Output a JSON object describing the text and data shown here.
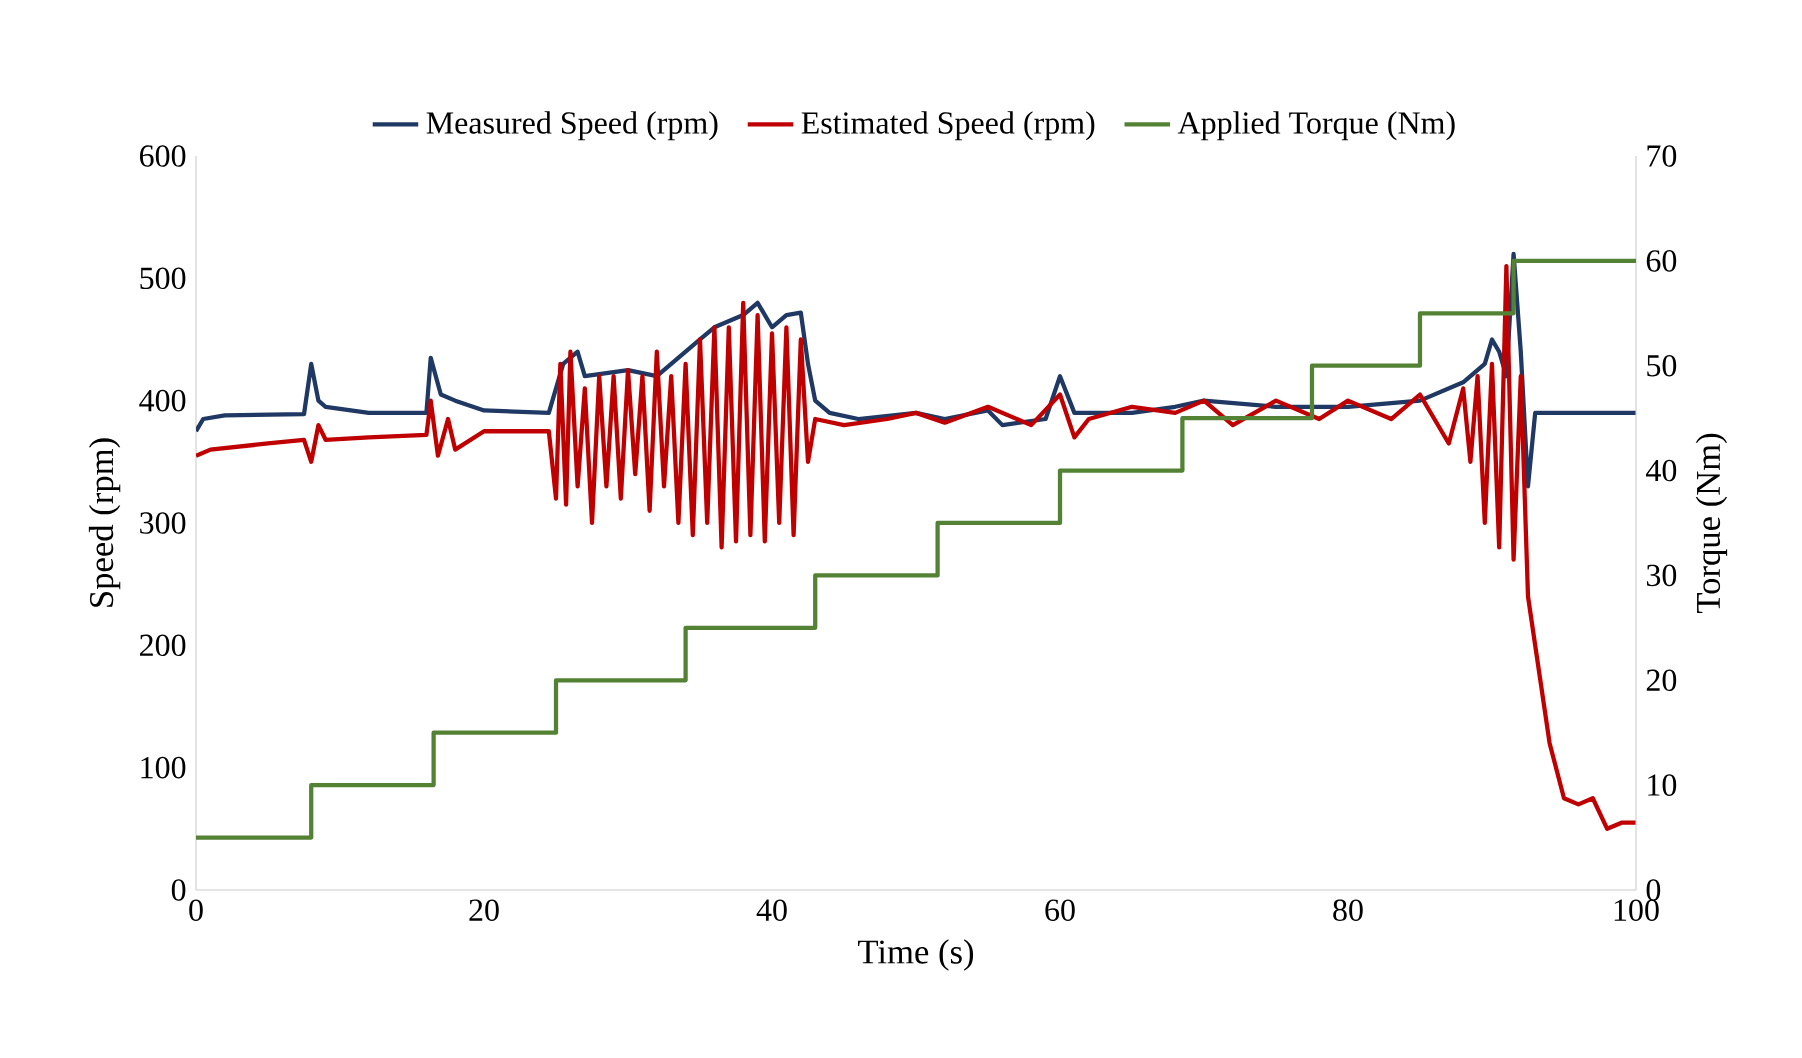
{
  "chart_data": {
    "type": "line",
    "xlabel": "Time (s)",
    "ylabel": "Speed (rpm)",
    "y2label": "Torque (Nm)",
    "xlim": [
      0,
      100
    ],
    "xticks": [
      0,
      20,
      40,
      60,
      80,
      100
    ],
    "ylim": [
      0,
      600
    ],
    "yticks": [
      0,
      100,
      200,
      300,
      400,
      500,
      600
    ],
    "y2lim": [
      0,
      70
    ],
    "y2ticks": [
      0,
      10,
      20,
      30,
      40,
      50,
      60,
      70
    ],
    "legend": "top",
    "grid": false,
    "marker": "none",
    "line_style": "solid",
    "series": [
      {
        "name": "Measured Speed (rpm)",
        "color": "#203864",
        "x": [
          0,
          0.5,
          2,
          7.5,
          8,
          8.5,
          9,
          12,
          16,
          16.3,
          17,
          18,
          20,
          24.5,
          25,
          25.5,
          26.5,
          27,
          30,
          32,
          34,
          35,
          36,
          37,
          38,
          39,
          40,
          41,
          42,
          42.5,
          43,
          44,
          46,
          50,
          52,
          55,
          56,
          59,
          60,
          61,
          65,
          68,
          70,
          75,
          80,
          85,
          88,
          89.5,
          90,
          90.5,
          91,
          91.5,
          92,
          92.5,
          93,
          94,
          100
        ],
        "values": [
          375,
          385,
          388,
          389,
          430,
          400,
          395,
          390,
          390,
          435,
          405,
          400,
          392,
          390,
          410,
          430,
          440,
          420,
          425,
          420,
          440,
          450,
          460,
          465,
          470,
          480,
          460,
          470,
          472,
          430,
          400,
          390,
          385,
          390,
          385,
          392,
          380,
          385,
          420,
          390,
          390,
          395,
          400,
          395,
          395,
          400,
          415,
          430,
          450,
          440,
          420,
          520,
          440,
          330,
          390,
          390,
          390
        ]
      },
      {
        "name": "Estimated Speed (rpm)",
        "color": "#c00000",
        "x": [
          0,
          1,
          5,
          7.5,
          8,
          8.5,
          9,
          12,
          16,
          16.3,
          16.8,
          17.5,
          18,
          20,
          24.5,
          25,
          25.3,
          25.7,
          26,
          26.5,
          27,
          27.5,
          28,
          28.5,
          29,
          29.5,
          30,
          30.5,
          31,
          31.5,
          32,
          32.5,
          33,
          33.5,
          34,
          34.5,
          35,
          35.5,
          36,
          36.5,
          37,
          37.5,
          38,
          38.5,
          39,
          39.5,
          40,
          40.5,
          41,
          41.5,
          42,
          42.5,
          43,
          45,
          48,
          50,
          52,
          55,
          58,
          60,
          61,
          62,
          65,
          68,
          70,
          72,
          75,
          78,
          80,
          83,
          85,
          86,
          87,
          88,
          88.5,
          89,
          89.5,
          90,
          90.5,
          91,
          91.5,
          92,
          92.5,
          93,
          94,
          95,
          96,
          97,
          98,
          99,
          100
        ],
        "values": [
          355,
          360,
          365,
          368,
          350,
          380,
          368,
          370,
          372,
          400,
          355,
          385,
          360,
          375,
          375,
          320,
          430,
          315,
          440,
          330,
          410,
          300,
          420,
          330,
          420,
          320,
          425,
          340,
          420,
          310,
          440,
          330,
          420,
          300,
          430,
          290,
          450,
          300,
          460,
          280,
          460,
          285,
          480,
          290,
          470,
          285,
          455,
          300,
          460,
          290,
          450,
          350,
          385,
          380,
          385,
          390,
          382,
          395,
          380,
          405,
          370,
          385,
          395,
          390,
          400,
          380,
          400,
          385,
          400,
          385,
          405,
          385,
          365,
          410,
          350,
          420,
          300,
          430,
          280,
          510,
          270,
          420,
          240,
          200,
          120,
          75,
          70,
          75,
          50,
          55,
          55
        ]
      },
      {
        "name": "Applied Torque (Nm)",
        "color": "#548235",
        "type": "step",
        "axis": "y2",
        "x": [
          0,
          8,
          16.5,
          25,
          34,
          43,
          51.5,
          60,
          68.5,
          77.5,
          85,
          91.5,
          100
        ],
        "values": [
          5,
          10,
          15,
          20,
          25,
          30,
          35,
          40,
          45,
          50,
          55,
          60,
          60
        ]
      }
    ]
  }
}
